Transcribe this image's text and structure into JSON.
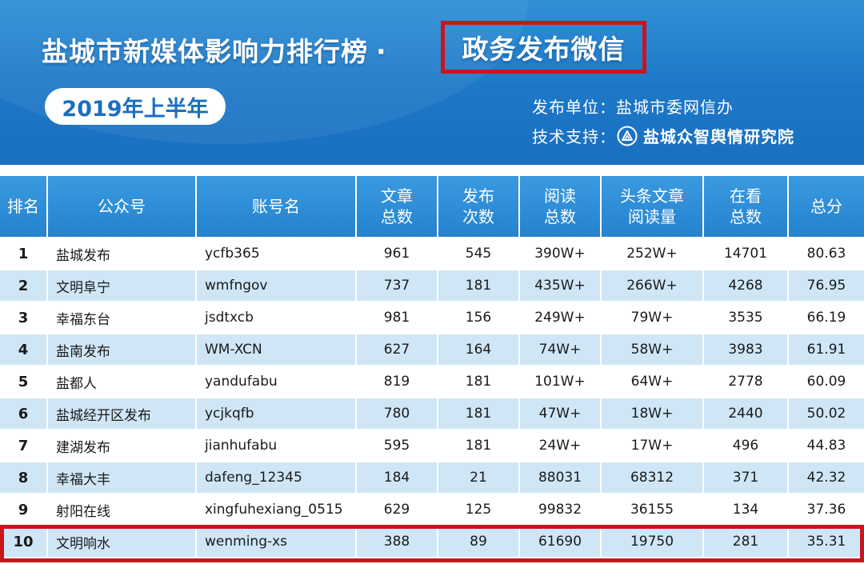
{
  "header": {
    "title_main": "盐城市新媒体影响力排行榜",
    "title_dot": "·",
    "title_highlight": "政务发布微信",
    "period": "2019年上半年",
    "publisher_label": "发布单位：",
    "publisher_value": "盐城市委网信办",
    "support_label": "技术支持：",
    "support_value": "盐城众智舆情研究院",
    "support_logo_icon": "research-institute-logo-icon"
  },
  "colors": {
    "banner": "#1d77c7",
    "header_cell": "#2482cf",
    "stripe": "#cfe6f6",
    "highlight_border": "#c8161d"
  },
  "table": {
    "headers": [
      [
        "排名"
      ],
      [
        "公众号"
      ],
      [
        "账号名"
      ],
      [
        "文章",
        "总数"
      ],
      [
        "发布",
        "次数"
      ],
      [
        "阅读",
        "总数"
      ],
      [
        "头条文章",
        "阅读量"
      ],
      [
        "在看",
        "总数"
      ],
      [
        "总分"
      ]
    ],
    "rows": [
      {
        "rank": "1",
        "name": "盐城发布",
        "account": "ycfb365",
        "articles": "961",
        "publishes": "545",
        "reads": "390W+",
        "headline_reads": "252W+",
        "looking": "14701",
        "score": "80.63"
      },
      {
        "rank": "2",
        "name": "文明阜宁",
        "account": "wmfngov",
        "articles": "737",
        "publishes": "181",
        "reads": "435W+",
        "headline_reads": "266W+",
        "looking": "4268",
        "score": "76.95"
      },
      {
        "rank": "3",
        "name": "幸福东台",
        "account": "jsdtxcb",
        "articles": "981",
        "publishes": "156",
        "reads": "249W+",
        "headline_reads": "79W+",
        "looking": "3535",
        "score": "66.19"
      },
      {
        "rank": "4",
        "name": "盐南发布",
        "account": "WM-XCN",
        "articles": "627",
        "publishes": "164",
        "reads": "74W+",
        "headline_reads": "58W+",
        "looking": "3983",
        "score": "61.91"
      },
      {
        "rank": "5",
        "name": "盐都人",
        "account": "yandufabu",
        "articles": "819",
        "publishes": "181",
        "reads": "101W+",
        "headline_reads": "64W+",
        "looking": "2778",
        "score": "60.09"
      },
      {
        "rank": "6",
        "name": "盐城经开区发布",
        "account": "ycjkqfb",
        "articles": "780",
        "publishes": "181",
        "reads": "47W+",
        "headline_reads": "18W+",
        "looking": "2440",
        "score": "50.02"
      },
      {
        "rank": "7",
        "name": "建湖发布",
        "account": "jianhufabu",
        "articles": "595",
        "publishes": "181",
        "reads": "24W+",
        "headline_reads": "17W+",
        "looking": "496",
        "score": "44.83"
      },
      {
        "rank": "8",
        "name": "幸福大丰",
        "account": "dafeng_12345",
        "articles": "184",
        "publishes": "21",
        "reads": "88031",
        "headline_reads": "68312",
        "looking": "371",
        "score": "42.32"
      },
      {
        "rank": "9",
        "name": "射阳在线",
        "account": "xingfuhexiang_0515",
        "articles": "629",
        "publishes": "125",
        "reads": "99832",
        "headline_reads": "36155",
        "looking": "134",
        "score": "37.36"
      },
      {
        "rank": "10",
        "name": "文明响水",
        "account": "wenming-xs",
        "articles": "388",
        "publishes": "89",
        "reads": "61690",
        "headline_reads": "19750",
        "looking": "281",
        "score": "35.31"
      }
    ]
  }
}
